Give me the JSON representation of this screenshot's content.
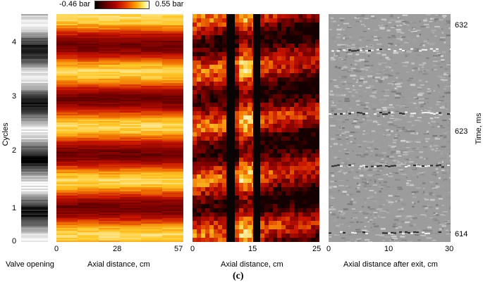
{
  "colorbar": {
    "min_label": "-0.46 bar",
    "max_label": "0.55 bar"
  },
  "left_axis": {
    "label": "Cycles",
    "ticks": [
      "0",
      "1",
      "2",
      "3",
      "4"
    ]
  },
  "right_axis": {
    "label": "Time, ms",
    "ticks": [
      "614",
      "623",
      "632"
    ]
  },
  "panels": [
    {
      "xlabel": "Valve opening",
      "xticks": []
    },
    {
      "xlabel": "Axial distance, cm",
      "xticks": [
        "0",
        "28",
        "57"
      ]
    },
    {
      "xlabel": "Axial distance, cm",
      "xticks": [
        "0",
        "15",
        "25"
      ]
    },
    {
      "xlabel": "Axial distance after exit, cm",
      "xticks": [
        "0",
        "10",
        "30"
      ]
    }
  ],
  "caption": "(c)",
  "colors": {
    "heat_dark": "#2a0000",
    "heat_red": "#c01000",
    "heat_orange": "#f07800",
    "heat_yellow": "#ffe040",
    "schlieren_gray": "#9a9a9a"
  }
}
